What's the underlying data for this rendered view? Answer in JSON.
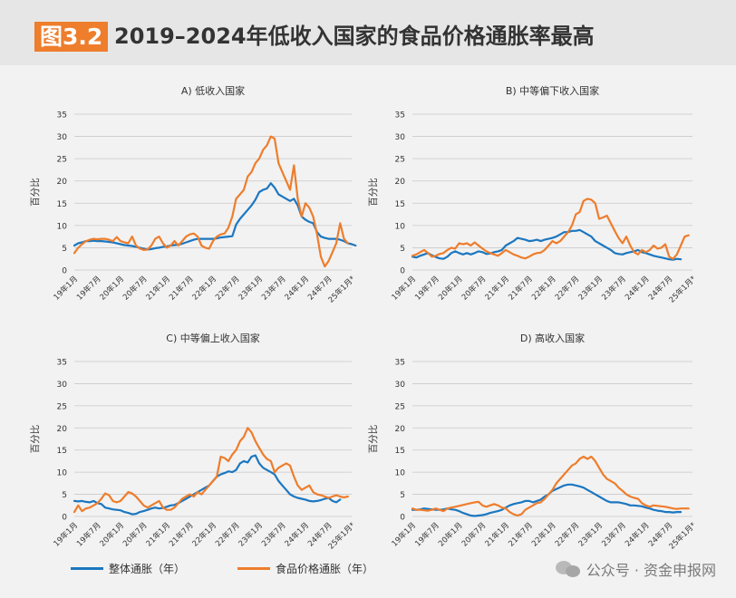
{
  "header": {
    "badge": "图3.2",
    "title": "2019–2024年低收入国家的食品价格通胀率最高"
  },
  "legend": {
    "overall": "整体通胀（年）",
    "food": "食品价格通胀（年）"
  },
  "watermark": {
    "text": "公众号 · 资金申报网",
    "icon": "wechat-icon"
  },
  "colors": {
    "overall": "#1c77c0",
    "food": "#ee7d2c",
    "grid": "#c8c8c8",
    "axis_text": "#333333"
  },
  "chart_data": [
    {
      "type": "line",
      "title": "A) 低收入国家",
      "ylabel": "百分比",
      "ylim": [
        0,
        35
      ],
      "yticks": [
        0,
        5,
        10,
        15,
        20,
        25,
        30,
        35
      ],
      "xticks": [
        "19年1月",
        "19年7月",
        "20年1月",
        "20年7月",
        "21年1月",
        "21年7月",
        "22年1月",
        "22年7月",
        "23年1月",
        "23年7月",
        "24年1月",
        "24年7月",
        "25年1月*"
      ],
      "x_start": "2019-01",
      "series": [
        {
          "key": "overall",
          "values": [
            5.5,
            6,
            6.2,
            6.5,
            6.5,
            6.6,
            6.5,
            6.5,
            6.4,
            6.3,
            6.2,
            6,
            5.8,
            5.6,
            5.5,
            5.4,
            5.2,
            5,
            4.8,
            4.6,
            4.7,
            4.9,
            5,
            5.2,
            5.3,
            5.5,
            5.6,
            5.7,
            5.9,
            6.2,
            6.5,
            6.8,
            7,
            7,
            7,
            7,
            7,
            7.1,
            7.3,
            7.4,
            7.5,
            7.6,
            10.2,
            11.5,
            12.5,
            13.5,
            14.5,
            15.8,
            17.5,
            18,
            18.3,
            19.5,
            18.5,
            17,
            16.5,
            16,
            15.5,
            16,
            14.5,
            12,
            11.3,
            10.8,
            10.5,
            8.5,
            7.5,
            7.2,
            7,
            7,
            7,
            6.8,
            6.5,
            6,
            5.8,
            5.5
          ]
        },
        {
          "key": "food",
          "values": [
            3.8,
            5,
            5.8,
            6.5,
            6.8,
            7,
            6.9,
            7,
            7,
            6.8,
            6.5,
            7.4,
            6.5,
            6.2,
            6,
            7.5,
            5.5,
            4.8,
            4.5,
            4.6,
            5.5,
            7,
            7.5,
            6,
            5,
            5.5,
            6.5,
            5.5,
            6.5,
            7.5,
            8,
            8.2,
            7.5,
            5.5,
            5,
            4.8,
            6.5,
            7.5,
            8,
            8.2,
            9.5,
            12,
            16,
            17,
            18,
            21,
            22,
            24,
            25,
            27,
            28,
            30,
            29.5,
            24,
            22,
            20,
            18,
            23.5,
            16,
            12,
            15,
            14,
            12,
            8,
            3,
            0.8,
            2,
            4,
            6,
            10.5,
            7,
            6
          ]
        }
      ]
    },
    {
      "type": "line",
      "title": "B) 中等偏下收入国家",
      "ylabel": "百分比",
      "ylim": [
        0,
        35
      ],
      "yticks": [
        0,
        5,
        10,
        15,
        20,
        25,
        30,
        35
      ],
      "xticks": [
        "19年1月",
        "19年7月",
        "20年1月",
        "20年7月",
        "21年1月",
        "21年7月",
        "22年1月",
        "22年7月",
        "23年1月",
        "23年7月",
        "24年1月",
        "24年7月",
        "25年1月*"
      ],
      "x_start": "2019-01",
      "series": [
        {
          "key": "overall",
          "values": [
            3,
            2.8,
            3.2,
            3.5,
            3.8,
            3.3,
            2.9,
            2.6,
            2.5,
            3,
            3.8,
            4.2,
            3.8,
            3.5,
            3.8,
            3.5,
            3.8,
            4.2,
            4,
            3.6,
            3.7,
            4,
            4.2,
            4.5,
            5.5,
            6,
            6.5,
            7.2,
            7,
            6.8,
            6.5,
            6.6,
            6.8,
            6.5,
            6.8,
            7,
            7.2,
            7.5,
            8,
            8.5,
            8.5,
            8.8,
            8.8,
            9,
            8.5,
            8,
            7.5,
            6.5,
            6,
            5.5,
            5,
            4.5,
            3.8,
            3.6,
            3.5,
            3.8,
            4,
            4.2,
            4.5,
            4,
            3.8,
            3.5,
            3.2,
            3,
            2.8,
            2.6,
            2.4,
            2.3,
            2.5,
            2.4
          ]
        },
        {
          "key": "food",
          "values": [
            3.2,
            3.5,
            4,
            4.5,
            3.8,
            3,
            3.2,
            3.6,
            3.8,
            4.5,
            5,
            4.8,
            6,
            5.8,
            6,
            5.5,
            6.2,
            5.5,
            4.8,
            4.2,
            3.8,
            3.5,
            3.2,
            3.8,
            4.5,
            4,
            3.5,
            3.2,
            2.8,
            2.6,
            3,
            3.5,
            3.8,
            3.9,
            4.5,
            5.5,
            6.5,
            6,
            6.5,
            7.5,
            8.5,
            10,
            12.5,
            13,
            15.5,
            16,
            15.8,
            15,
            11.5,
            11.8,
            12.2,
            10.5,
            8.8,
            7.2,
            6,
            7.5,
            5.5,
            4,
            3.5,
            4.5,
            4,
            4.5,
            5.5,
            4.8,
            5,
            5.8,
            3,
            2.5,
            3.5,
            5.5,
            7.5,
            7.8
          ]
        }
      ]
    },
    {
      "type": "line",
      "title": "C) 中等偏上收入国家",
      "ylabel": "百分比",
      "ylim": [
        0,
        35
      ],
      "yticks": [
        0,
        5,
        10,
        15,
        20,
        25,
        30,
        35
      ],
      "xticks": [
        "19年1月",
        "19年7月",
        "20年1月",
        "20年7月",
        "21年1月",
        "21年7月",
        "22年1月",
        "22年7月",
        "23年1月",
        "23年7月",
        "24年1月",
        "24年7月",
        "25年1月*"
      ],
      "x_start": "2019-01",
      "series": [
        {
          "key": "overall",
          "values": [
            3.5,
            3.4,
            3.5,
            3.3,
            3.2,
            3.5,
            3,
            2.8,
            2,
            1.8,
            1.6,
            1.5,
            1.4,
            1,
            0.8,
            0.5,
            0.6,
            1,
            1.2,
            1.5,
            1.8,
            2,
            1.8,
            1.9,
            2.2,
            2.5,
            2.6,
            3,
            3.5,
            4,
            4.5,
            5,
            5.5,
            6,
            6.5,
            7,
            8,
            9,
            9.5,
            9.8,
            10.2,
            10,
            10.5,
            12,
            12.5,
            12.2,
            13.5,
            13.8,
            12,
            11,
            10.5,
            10,
            9.5,
            8,
            7,
            6,
            5,
            4.5,
            4.2,
            4,
            3.8,
            3.5,
            3.4,
            3.5,
            3.7,
            4,
            4.2,
            3.5,
            3.2,
            3.8
          ]
        },
        {
          "key": "food",
          "values": [
            1,
            2.5,
            1.2,
            1.8,
            2,
            2.5,
            3,
            4,
            5.2,
            4.8,
            3.5,
            3.2,
            3.5,
            4.5,
            5.5,
            5.2,
            4.5,
            3.5,
            2.5,
            2,
            2.5,
            3,
            3.5,
            2,
            1.5,
            1.5,
            2,
            3,
            4,
            4.5,
            5,
            4.5,
            5.5,
            5,
            6,
            7,
            8,
            9,
            13.5,
            13.2,
            12.5,
            14,
            15,
            17,
            18,
            20,
            19,
            17,
            15.5,
            14,
            13,
            12.5,
            10,
            11,
            11.5,
            12,
            11.5,
            9,
            7,
            6,
            6.5,
            7,
            5.5,
            5,
            4.8,
            4.5,
            4.2,
            4.5,
            4.8,
            4.5,
            4.3,
            4.5
          ]
        }
      ]
    },
    {
      "type": "line",
      "title": "D) 高收入国家",
      "ylabel": "百分比",
      "ylim": [
        0,
        35
      ],
      "yticks": [
        0,
        5,
        10,
        15,
        20,
        25,
        30,
        35
      ],
      "xticks": [
        "19年1月",
        "19年7月",
        "20年1月",
        "20年7月",
        "21年1月",
        "21年7月",
        "22年1月",
        "22年7月",
        "23年1月",
        "23年7月",
        "24年1月",
        "24年7月",
        "25年1月*"
      ],
      "x_start": "2019-01",
      "series": [
        {
          "key": "overall",
          "values": [
            1.5,
            1.5,
            1.6,
            1.8,
            1.7,
            1.6,
            1.5,
            1.5,
            1.6,
            1.8,
            1.6,
            1.5,
            1.2,
            0.8,
            0.5,
            0.2,
            0.1,
            0.2,
            0.3,
            0.5,
            0.8,
            1,
            1.2,
            1.5,
            2,
            2.5,
            2.8,
            3,
            3.2,
            3.5,
            3.5,
            3.2,
            3.5,
            3.8,
            4.5,
            5,
            5.8,
            6.2,
            6.6,
            7,
            7.2,
            7.2,
            7,
            6.8,
            6.5,
            6,
            5.5,
            5,
            4.5,
            4,
            3.5,
            3.2,
            3.2,
            3.2,
            3,
            2.8,
            2.5,
            2.5,
            2.4,
            2.3,
            2,
            1.8,
            1.5,
            1.3,
            1.2,
            1,
            1,
            0.9,
            1,
            1
          ]
        },
        {
          "key": "food",
          "values": [
            1.8,
            1.5,
            1.5,
            1.4,
            1.3,
            1.5,
            1.8,
            1.5,
            1.2,
            1.8,
            2,
            2.2,
            2.4,
            2.6,
            2.8,
            3,
            3.2,
            3.3,
            2.5,
            2.2,
            2.5,
            2.8,
            2.5,
            2,
            1.8,
            1,
            0.5,
            0.2,
            0.5,
            1.5,
            2,
            2.5,
            3,
            3.2,
            4,
            5,
            6,
            7.5,
            8.5,
            9.5,
            10.5,
            11.5,
            12,
            13,
            13.5,
            13,
            13.5,
            12.5,
            11,
            9.5,
            8.5,
            8,
            7.5,
            6.5,
            5.8,
            5,
            4.5,
            4.2,
            4,
            3,
            2.5,
            2.2,
            2.5,
            2.4,
            2.3,
            2.2,
            2,
            1.8,
            1.7,
            1.8,
            1.8,
            1.8
          ]
        }
      ]
    }
  ]
}
